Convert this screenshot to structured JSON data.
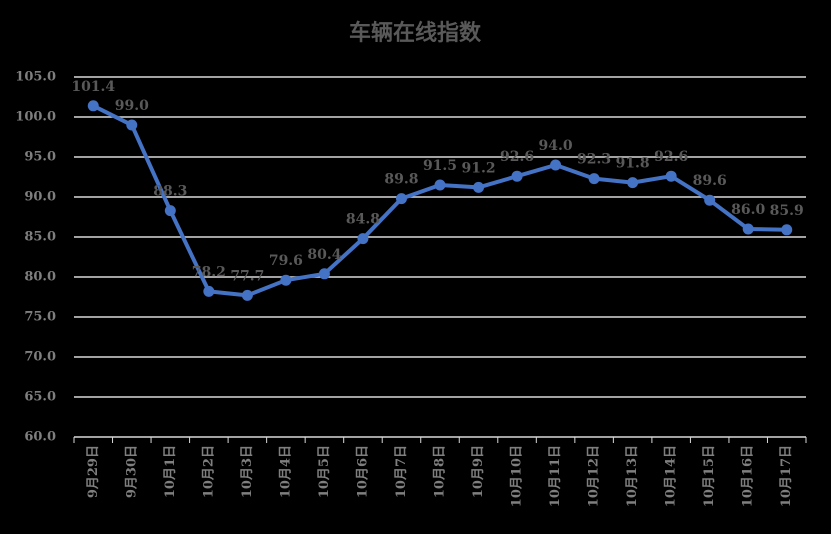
{
  "chart_data": {
    "type": "line",
    "title": "车辆在线指数",
    "categories": [
      "9月29日",
      "9月30日",
      "10月1日",
      "10月2日",
      "10月3日",
      "10月4日",
      "10月5日",
      "10月6日",
      "10月7日",
      "10月8日",
      "10月9日",
      "10月10日",
      "10月11日",
      "10月12日",
      "10月13日",
      "10月14日",
      "10月15日",
      "10月16日",
      "10月17日"
    ],
    "series": [
      {
        "name": "车辆在线指数",
        "color": "#4472c4",
        "values": [
          101.4,
          99.0,
          88.3,
          78.2,
          77.7,
          79.6,
          80.4,
          84.8,
          89.8,
          91.5,
          91.2,
          92.6,
          94.0,
          92.3,
          91.8,
          92.6,
          89.6,
          86.0,
          85.9
        ],
        "value_labels": [
          "101.4",
          "99.0",
          "88.3",
          "78.2",
          "77.7",
          "79.6",
          "80.4",
          "84.8",
          "89.8",
          "91.5",
          "91.2",
          "92.6",
          "94.0",
          "92.3",
          "91.8",
          "92.6",
          "89.6",
          "86.0",
          "85.9"
        ]
      }
    ],
    "ylim": [
      60,
      105
    ],
    "yticks": [
      {
        "value": 60,
        "label": "60.0"
      },
      {
        "value": 65,
        "label": "65.0"
      },
      {
        "value": 70,
        "label": "70.0"
      },
      {
        "value": 75,
        "label": "75.0"
      },
      {
        "value": 80,
        "label": "80.0"
      },
      {
        "value": 85,
        "label": "85.0"
      },
      {
        "value": 90,
        "label": "90.0"
      },
      {
        "value": 95,
        "label": "95.0"
      },
      {
        "value": 100,
        "label": "100.0"
      },
      {
        "value": 105,
        "label": "105.0"
      }
    ],
    "grid": true
  }
}
